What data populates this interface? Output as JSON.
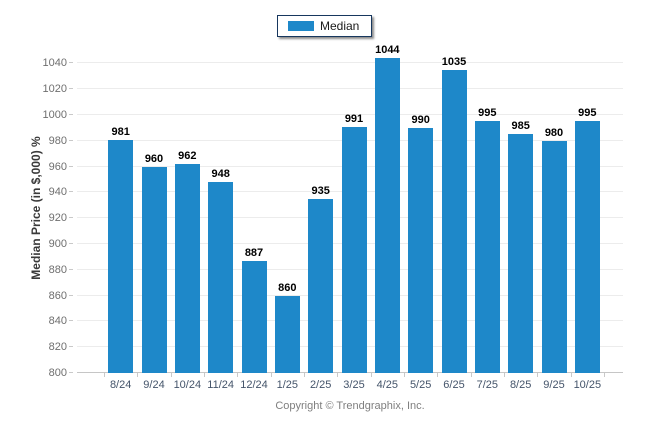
{
  "legend": {
    "label": "Median",
    "swatch_color": "#1E88C9"
  },
  "footer": {
    "text": "Copyright © Trendgraphix, Inc."
  },
  "chart_data": {
    "type": "bar",
    "title": "",
    "series_name": "Median",
    "categories": [
      "8/24",
      "9/24",
      "10/24",
      "11/24",
      "12/24",
      "1/25",
      "2/25",
      "3/25",
      "4/25",
      "5/25",
      "6/25",
      "7/25",
      "8/25",
      "9/25",
      "10/25"
    ],
    "values": [
      981,
      960,
      962,
      948,
      887,
      860,
      935,
      991,
      1044,
      990,
      1035,
      995,
      985,
      980,
      995
    ],
    "xlabel": "",
    "ylabel": "Median Price (in $,000) %",
    "ylim": [
      800,
      1060
    ],
    "y_ticks": [
      800,
      820,
      840,
      860,
      880,
      900,
      920,
      940,
      960,
      980,
      1000,
      1020,
      1040
    ],
    "bar_color": "#1E88C9",
    "grid": true,
    "value_labels": true,
    "legend_position": "top-center"
  }
}
